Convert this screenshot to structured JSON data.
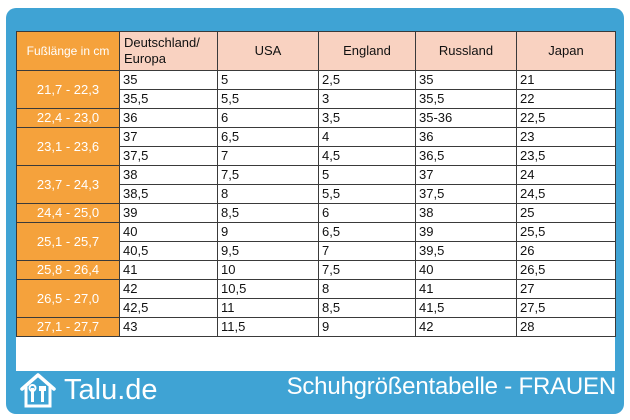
{
  "header": {
    "col0": "Fußlänge in cm",
    "col1": "Deutschland/ Europa",
    "col2": "USA",
    "col3": "England",
    "col4": "Russland",
    "col5": "Japan"
  },
  "groups": [
    {
      "range": "21,7 - 22,3",
      "rows": [
        [
          "35",
          "5",
          "2,5",
          "35",
          "21"
        ],
        [
          "35,5",
          "5,5",
          "3",
          "35,5",
          "22"
        ]
      ]
    },
    {
      "range": "22,4 - 23,0",
      "rows": [
        [
          "36",
          "6",
          "3,5",
          "35-36",
          "22,5"
        ]
      ]
    },
    {
      "range": "23,1 - 23,6",
      "rows": [
        [
          "37",
          "6,5",
          "4",
          "36",
          "23"
        ],
        [
          "37,5",
          "7",
          "4,5",
          "36,5",
          "23,5"
        ]
      ]
    },
    {
      "range": "23,7 - 24,3",
      "rows": [
        [
          "38",
          "7,5",
          "5",
          "37",
          "24"
        ],
        [
          "38,5",
          "8",
          "5,5",
          "37,5",
          "24,5"
        ]
      ]
    },
    {
      "range": "24,4 - 25,0",
      "rows": [
        [
          "39",
          "8,5",
          "6",
          "38",
          "25"
        ]
      ]
    },
    {
      "range": "25,1 - 25,7",
      "rows": [
        [
          "40",
          "9",
          "6,5",
          "39",
          "25,5"
        ],
        [
          "40,5",
          "9,5",
          "7",
          "39,5",
          "26"
        ]
      ]
    },
    {
      "range": "25,8 - 26,4",
      "rows": [
        [
          "41",
          "10",
          "7,5",
          "40",
          "26,5"
        ]
      ]
    },
    {
      "range": "26,5 - 27,0",
      "rows": [
        [
          "42",
          "10,5",
          "8",
          "41",
          "27"
        ],
        [
          "42,5",
          "11",
          "8,5",
          "41,5",
          "27,5"
        ]
      ]
    },
    {
      "range": "27,1 - 27,7",
      "rows": [
        [
          "43",
          "11,5",
          "9",
          "42",
          "28"
        ]
      ]
    }
  ],
  "footer": {
    "logo_text": "Talu.de",
    "title": "Schuhgrößentabelle - FRAUEN",
    "logo_icon": "house-tools-icon"
  },
  "colors": {
    "frame": "#3fa3d4",
    "range_cell": "#f5a23c",
    "header_cell": "#f9d2c1"
  }
}
